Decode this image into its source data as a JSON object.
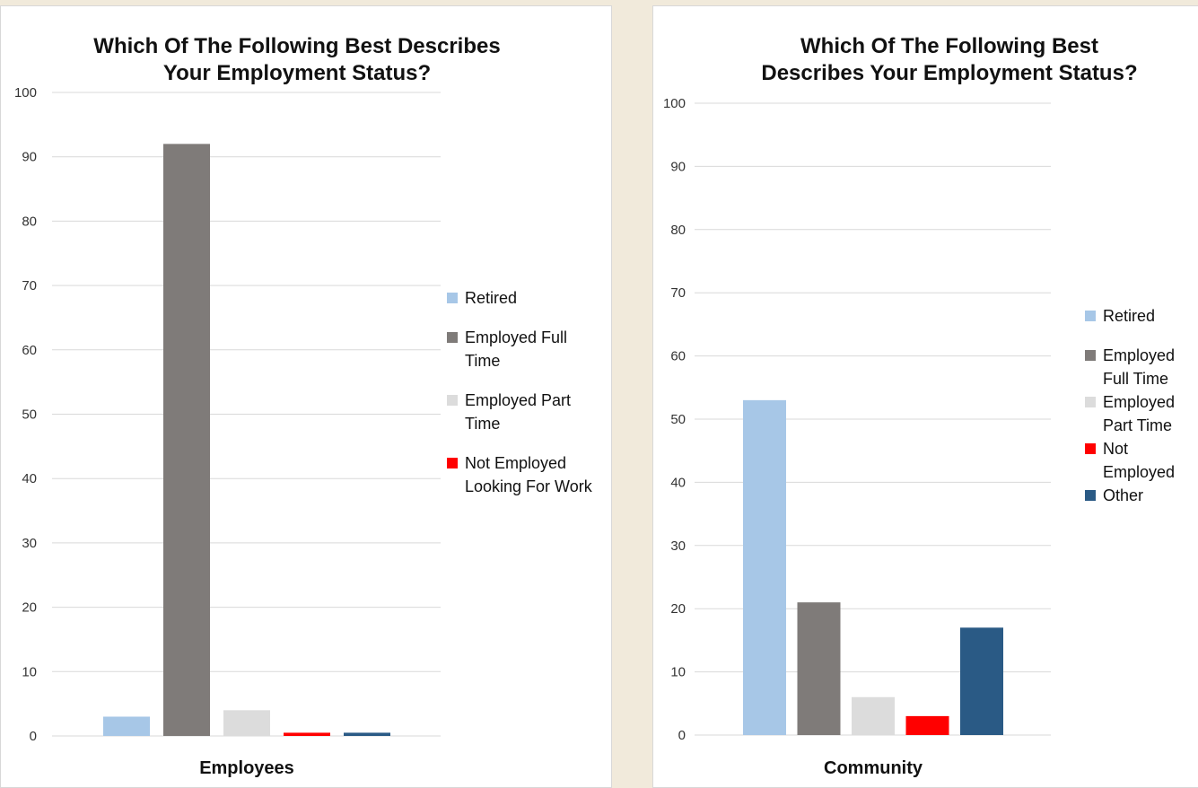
{
  "chart_data": [
    {
      "type": "bar",
      "title": "Which Of The Following Best\nDescribes Your Employment Status?",
      "title_display": "Which Of The Following Best Describes\nYour Employment Status?",
      "categories": [
        "Employees"
      ],
      "ylim": [
        0,
        100
      ],
      "yticks": [
        0,
        10,
        20,
        30,
        40,
        50,
        60,
        70,
        80,
        90,
        100
      ],
      "grid": true,
      "legend_position": "right",
      "series": [
        {
          "name": "Retired",
          "values": [
            3
          ],
          "color": "#a7c7e7"
        },
        {
          "name": "Employed Full Time",
          "values": [
            92
          ],
          "color": "#7f7b79"
        },
        {
          "name": "Employed Part Time",
          "values": [
            4
          ],
          "color": "#dcdcdc"
        },
        {
          "name": "Not Employed Looking For Work",
          "values": [
            0.5
          ],
          "color": "#ff0000"
        },
        {
          "name": "",
          "values": [
            0.5
          ],
          "color": "#2a5a85"
        }
      ]
    },
    {
      "type": "bar",
      "title": "Which Of The Following Best\nDescribes Your Employment Status?",
      "categories": [
        "Community"
      ],
      "ylim": [
        0,
        100
      ],
      "yticks": [
        0,
        10,
        20,
        30,
        40,
        50,
        60,
        70,
        80,
        90,
        100
      ],
      "grid": true,
      "legend_position": "right",
      "series": [
        {
          "name": "Retired",
          "values": [
            53
          ],
          "color": "#a7c7e7"
        },
        {
          "name": "Employed Full Time",
          "values": [
            21
          ],
          "color": "#7f7b79"
        },
        {
          "name": "Employed Part Time",
          "values": [
            6
          ],
          "color": "#dcdcdc"
        },
        {
          "name": "Not Employed",
          "values": [
            3
          ],
          "color": "#ff0000"
        },
        {
          "name": "Other",
          "values": [
            17
          ],
          "color": "#2a5a85"
        }
      ]
    }
  ]
}
